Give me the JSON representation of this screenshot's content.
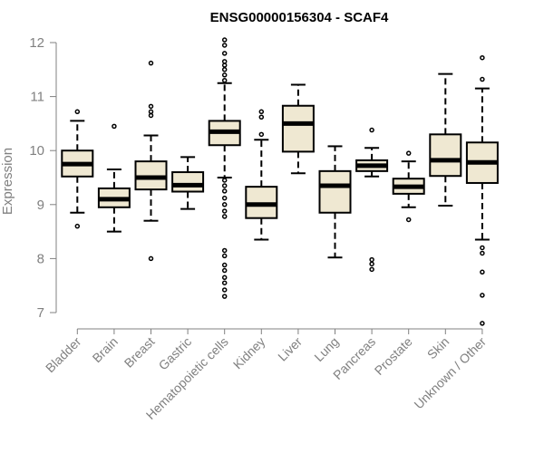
{
  "chart_data": {
    "type": "boxplot",
    "title": "ENSG00000156304 - SCAF4",
    "xlabel": "",
    "ylabel": "Expression",
    "ylim": [
      6.8,
      12.1
    ],
    "yticks": [
      7,
      8,
      9,
      10,
      11,
      12
    ],
    "colors": {
      "box_fill": "#efe8d2",
      "stroke": "#000000",
      "axis": "#808080",
      "label": "#808080"
    },
    "categories": [
      "Bladder",
      "Brain",
      "Breast",
      "Gastric",
      "Hematopoietic cells",
      "Kidney",
      "Liver",
      "Lung",
      "Pancreas",
      "Prostate",
      "Skin",
      "Unknown / Other"
    ],
    "boxes": [
      {
        "name": "Bladder",
        "whisker_low": 8.85,
        "q1": 9.52,
        "median": 9.75,
        "q3": 10.0,
        "whisker_high": 10.55,
        "outliers": [
          8.6,
          10.72
        ]
      },
      {
        "name": "Brain",
        "whisker_low": 8.5,
        "q1": 8.95,
        "median": 9.1,
        "q3": 9.3,
        "whisker_high": 9.65,
        "outliers": [
          10.45
        ]
      },
      {
        "name": "Breast",
        "whisker_low": 8.7,
        "q1": 9.28,
        "median": 9.5,
        "q3": 9.8,
        "whisker_high": 10.28,
        "outliers": [
          8.0,
          10.65,
          10.72,
          10.82,
          11.62
        ]
      },
      {
        "name": "Gastric",
        "whisker_low": 8.92,
        "q1": 9.24,
        "median": 9.36,
        "q3": 9.6,
        "whisker_high": 9.88,
        "outliers": []
      },
      {
        "name": "Hematopoietic cells",
        "whisker_low": 9.5,
        "q1": 10.1,
        "median": 10.35,
        "q3": 10.55,
        "whisker_high": 11.25,
        "outliers": [
          7.3,
          7.42,
          7.55,
          7.65,
          7.78,
          7.88,
          8.05,
          8.15,
          8.78,
          8.88,
          9.0,
          9.12,
          9.25,
          9.35,
          9.45,
          11.3,
          11.4,
          11.5,
          11.58,
          11.65,
          11.8,
          11.95,
          12.05
        ]
      },
      {
        "name": "Kidney",
        "whisker_low": 8.35,
        "q1": 8.75,
        "median": 9.0,
        "q3": 9.33,
        "whisker_high": 10.2,
        "outliers": [
          10.3,
          10.62,
          10.72
        ]
      },
      {
        "name": "Liver",
        "whisker_low": 9.58,
        "q1": 9.98,
        "median": 10.5,
        "q3": 10.83,
        "whisker_high": 11.22,
        "outliers": []
      },
      {
        "name": "Lung",
        "whisker_low": 8.02,
        "q1": 8.85,
        "median": 9.35,
        "q3": 9.62,
        "whisker_high": 10.08,
        "outliers": []
      },
      {
        "name": "Pancreas",
        "whisker_low": 9.52,
        "q1": 9.62,
        "median": 9.72,
        "q3": 9.82,
        "whisker_high": 10.05,
        "outliers": [
          7.8,
          7.9,
          7.98,
          10.38
        ]
      },
      {
        "name": "Prostate",
        "whisker_low": 8.95,
        "q1": 9.2,
        "median": 9.33,
        "q3": 9.48,
        "whisker_high": 9.8,
        "outliers": [
          8.72,
          9.95
        ]
      },
      {
        "name": "Skin",
        "whisker_low": 8.98,
        "q1": 9.53,
        "median": 9.82,
        "q3": 10.3,
        "whisker_high": 11.42,
        "outliers": []
      },
      {
        "name": "Unknown / Other",
        "whisker_low": 8.35,
        "q1": 9.4,
        "median": 9.78,
        "q3": 10.15,
        "whisker_high": 11.15,
        "outliers": [
          6.8,
          7.32,
          7.75,
          8.1,
          8.2,
          11.32,
          11.72
        ]
      }
    ]
  }
}
